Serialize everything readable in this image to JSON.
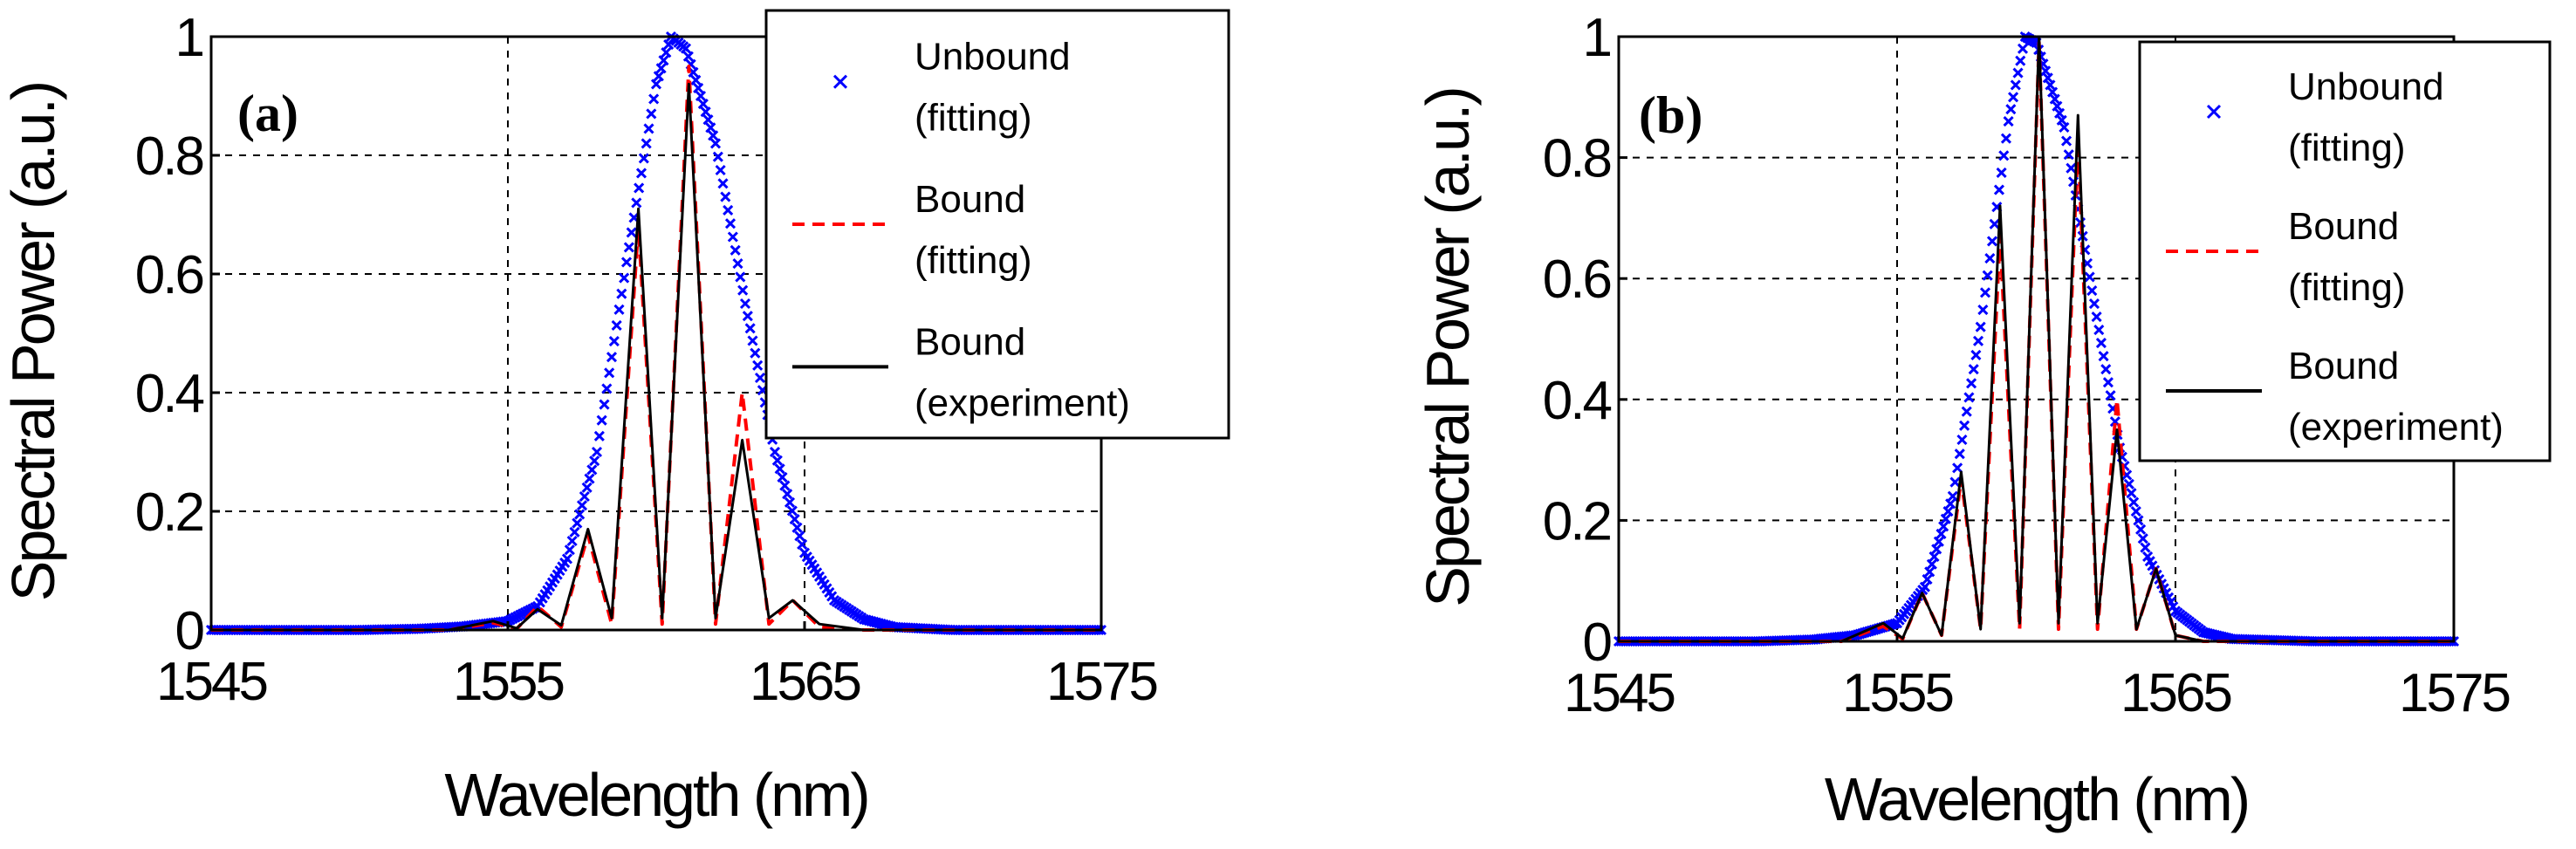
{
  "chart_data": [
    {
      "type": "line",
      "panel_label": "(a)",
      "xlabel": "Wavelength (nm)",
      "ylabel": "Spectral Power (a.u.)",
      "xlim": [
        1545,
        1575
      ],
      "ylim": [
        0,
        1
      ],
      "xticks": [
        1545,
        1555,
        1565,
        1575
      ],
      "yticks": [
        0,
        0.2,
        0.4,
        0.6,
        0.8,
        1
      ],
      "grid": true,
      "legend_position": "top-right",
      "series": [
        {
          "name": "Unbound (fitting)",
          "style": "x-markers",
          "color": "#0000ff",
          "x": [
            1545,
            1550,
            1552,
            1553.5,
            1555,
            1556,
            1557,
            1558,
            1559,
            1560,
            1560.5,
            1561,
            1562,
            1563,
            1564,
            1565,
            1566,
            1567,
            1568,
            1570,
            1575
          ],
          "y": [
            0,
            0,
            0.002,
            0.006,
            0.015,
            0.04,
            0.12,
            0.3,
            0.62,
            0.92,
            1.0,
            0.98,
            0.82,
            0.55,
            0.3,
            0.13,
            0.05,
            0.018,
            0.005,
            0,
            0
          ]
        },
        {
          "name": "Bound (fitting)",
          "style": "dashed",
          "color": "#ff0000",
          "x": [
            1545,
            1553,
            1554.5,
            1555.3,
            1556,
            1556.8,
            1557.7,
            1558.5,
            1559.4,
            1560.2,
            1561.1,
            1562,
            1562.9,
            1563.8,
            1564.6,
            1565.5,
            1567,
            1575
          ],
          "y": [
            0,
            0,
            0.012,
            0.002,
            0.04,
            0.005,
            0.16,
            0.01,
            0.68,
            0.01,
            0.95,
            0.01,
            0.4,
            0.01,
            0.05,
            0.005,
            0,
            0
          ]
        },
        {
          "name": "Bound (experiment)",
          "style": "solid",
          "color": "#000000",
          "x": [
            1545,
            1553,
            1554.5,
            1555.3,
            1556,
            1556.8,
            1557.7,
            1558.5,
            1559.4,
            1560.2,
            1561.1,
            1562,
            1562.9,
            1563.8,
            1564.6,
            1565.5,
            1567,
            1575
          ],
          "y": [
            0,
            0,
            0.015,
            0.003,
            0.035,
            0.008,
            0.17,
            0.02,
            0.71,
            0.02,
            0.92,
            0.02,
            0.32,
            0.02,
            0.05,
            0.01,
            0,
            0
          ]
        }
      ]
    },
    {
      "type": "line",
      "panel_label": "(b)",
      "xlabel": "Wavelength (nm)",
      "ylabel": "Spectral Power (a.u.)",
      "xlim": [
        1545,
        1575
      ],
      "ylim": [
        0,
        1
      ],
      "xticks": [
        1545,
        1555,
        1565,
        1575
      ],
      "yticks": [
        0,
        0.2,
        0.4,
        0.6,
        0.8,
        1
      ],
      "grid": true,
      "legend_position": "top-right",
      "series": [
        {
          "name": "Unbound (fitting)",
          "style": "x-markers",
          "color": "#0000ff",
          "x": [
            1545,
            1550,
            1552,
            1553.5,
            1555,
            1556,
            1557,
            1558,
            1559,
            1559.6,
            1560,
            1561,
            1562,
            1563,
            1564,
            1565,
            1566,
            1567,
            1570,
            1575
          ],
          "y": [
            0,
            0,
            0.003,
            0.01,
            0.03,
            0.09,
            0.24,
            0.52,
            0.86,
            1.0,
            0.99,
            0.85,
            0.58,
            0.32,
            0.14,
            0.05,
            0.015,
            0.004,
            0,
            0
          ]
        },
        {
          "name": "Bound (fitting)",
          "style": "dashed",
          "color": "#ff0000",
          "x": [
            1545,
            1553,
            1554.5,
            1555.2,
            1555.9,
            1556.6,
            1557.3,
            1558,
            1558.7,
            1559.4,
            1560.1,
            1560.8,
            1561.5,
            1562.2,
            1562.9,
            1563.6,
            1564.3,
            1565,
            1566,
            1575
          ],
          "y": [
            0,
            0,
            0.025,
            0.004,
            0.08,
            0.01,
            0.27,
            0.02,
            0.67,
            0.02,
            0.99,
            0.02,
            0.83,
            0.02,
            0.4,
            0.02,
            0.12,
            0.01,
            0,
            0
          ]
        },
        {
          "name": "Bound (experiment)",
          "style": "solid",
          "color": "#000000",
          "x": [
            1545,
            1553,
            1554.5,
            1555.2,
            1555.9,
            1556.6,
            1557.3,
            1558,
            1558.7,
            1559.4,
            1560.1,
            1560.8,
            1561.5,
            1562.2,
            1562.9,
            1563.6,
            1564.3,
            1565,
            1566,
            1575
          ],
          "y": [
            0,
            0,
            0.03,
            0.005,
            0.08,
            0.01,
            0.28,
            0.02,
            0.72,
            0.03,
            1.0,
            0.03,
            0.87,
            0.03,
            0.35,
            0.02,
            0.12,
            0.01,
            0,
            0
          ]
        }
      ]
    }
  ]
}
